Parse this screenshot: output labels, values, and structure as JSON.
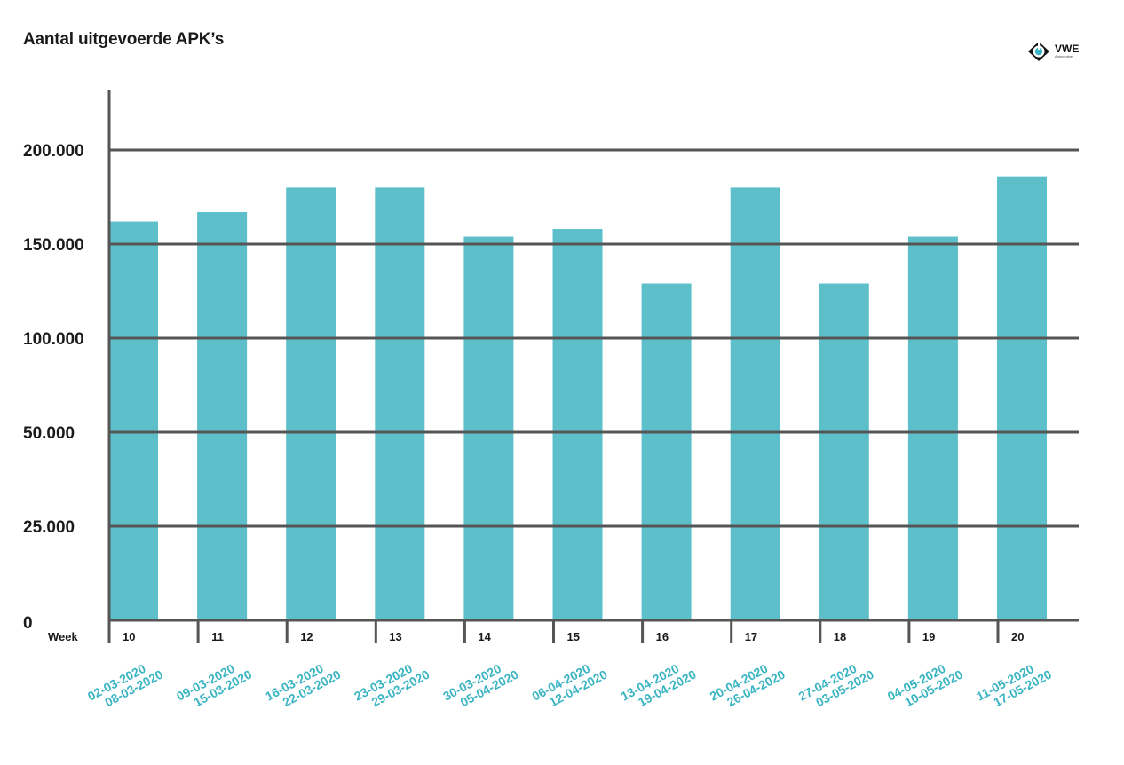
{
  "title": "Aantal uitgevoerde APK’s",
  "logo": {
    "text": "VWE",
    "subtext": "Automotive",
    "icon": "vwe-logo-icon"
  },
  "colors": {
    "bar": "#5dbfca",
    "date_text": "#3ab4c2",
    "axis": "#555555",
    "grid": "#555555"
  },
  "chart_data": {
    "type": "bar",
    "title": "Aantal uitgevoerde APK’s",
    "xlabel": "Week",
    "ylabel": "",
    "y_ticks": [
      "0",
      "25.000",
      "50.000",
      "100.000",
      "150.000",
      "200.000"
    ],
    "ylim": [
      0,
      225000
    ],
    "grid": true,
    "categories": [
      "10",
      "11",
      "12",
      "13",
      "14",
      "15",
      "16",
      "17",
      "18",
      "19",
      "20"
    ],
    "date_ranges": [
      [
        "02-03-2020",
        "08-03-2020"
      ],
      [
        "09-03-2020",
        "15-03-2020"
      ],
      [
        "16-03-2020",
        "22-03-2020"
      ],
      [
        "23-03-2020",
        "29-03-2020"
      ],
      [
        "30-03-2020",
        "05-04-2020"
      ],
      [
        "06-04-2020",
        "12-04-2020"
      ],
      [
        "13-04-2020",
        "19-04-2020"
      ],
      [
        "20-04-2020",
        "26-04-2020"
      ],
      [
        "27-04-2020",
        "03-05-2020"
      ],
      [
        "04-05-2020",
        "10-05-2020"
      ],
      [
        "11-05-2020",
        "17-05-2020"
      ]
    ],
    "values": [
      162000,
      167000,
      180000,
      180000,
      154000,
      158000,
      129000,
      180000,
      129000,
      154000,
      186000
    ]
  }
}
